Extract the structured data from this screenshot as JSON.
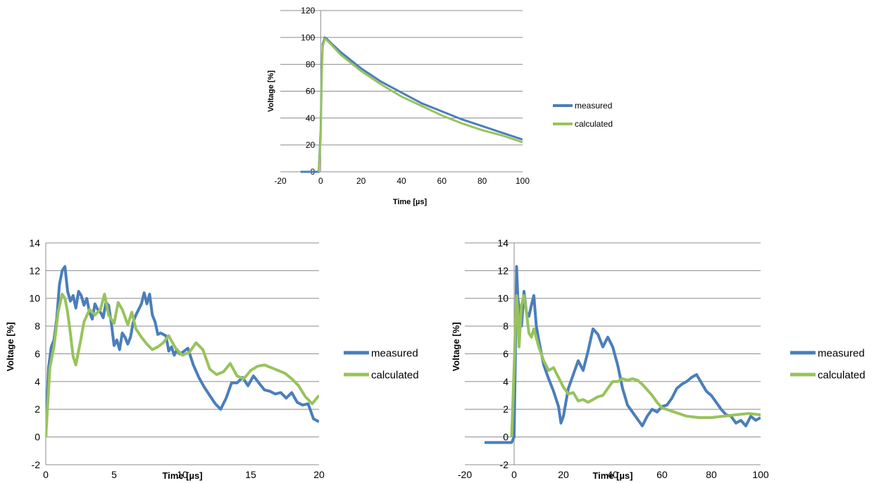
{
  "chart_data": [
    {
      "type": "line",
      "xlabel": "Time [µs]",
      "ylabel": "Voltage [%]",
      "xlim": [
        -20,
        100
      ],
      "ylim": [
        0,
        120
      ],
      "xticks": [
        -20,
        0,
        20,
        40,
        60,
        80,
        100
      ],
      "yticks": [
        0,
        20,
        40,
        60,
        80,
        100,
        120
      ],
      "grid": true,
      "legend_position": "right",
      "series": [
        {
          "name": "measured",
          "color": "#4a7ebb",
          "x": [
            -10,
            -1,
            0,
            0.5,
            1,
            2,
            3,
            5,
            10,
            20,
            30,
            40,
            50,
            60,
            70,
            80,
            90,
            100
          ],
          "y": [
            0,
            0,
            30,
            75,
            95,
            100,
            99,
            96,
            89,
            77,
            67,
            59,
            51,
            45,
            39,
            34,
            29,
            24
          ]
        },
        {
          "name": "calculated",
          "color": "#98c35b",
          "x": [
            -1,
            0,
            0.5,
            1,
            2,
            3,
            5,
            10,
            20,
            30,
            40,
            50,
            60,
            70,
            80,
            90,
            100
          ],
          "y": [
            0,
            25,
            70,
            93,
            99,
            98,
            95,
            87,
            75,
            65,
            56,
            49,
            42,
            36,
            31,
            27,
            22
          ]
        }
      ]
    },
    {
      "type": "line",
      "xlabel": "Time [µs]",
      "ylabel": "Voltage [%]",
      "xlim": [
        0,
        20
      ],
      "ylim": [
        -2,
        14
      ],
      "xticks": [
        0,
        5,
        10,
        15,
        20
      ],
      "yticks": [
        -2,
        0,
        2,
        4,
        6,
        8,
        10,
        12,
        14
      ],
      "grid": true,
      "legend_position": "right",
      "series": [
        {
          "name": "measured",
          "color": "#4a7ebb",
          "x": [
            0,
            0.2,
            0.4,
            0.6,
            0.8,
            1.0,
            1.2,
            1.4,
            1.6,
            1.8,
            2.0,
            2.2,
            2.4,
            2.6,
            2.8,
            3.0,
            3.2,
            3.4,
            3.6,
            3.8,
            4.0,
            4.2,
            4.4,
            4.6,
            4.8,
            5.0,
            5.2,
            5.4,
            5.6,
            5.8,
            6.0,
            6.2,
            6.4,
            6.6,
            6.8,
            7.0,
            7.2,
            7.4,
            7.6,
            7.8,
            8.0,
            8.2,
            8.4,
            8.6,
            8.8,
            9.0,
            9.2,
            9.4,
            9.6,
            9.8,
            10.0,
            10.4,
            10.8,
            11.2,
            11.6,
            12.0,
            12.4,
            12.8,
            13.2,
            13.6,
            14.0,
            14.4,
            14.8,
            15.2,
            15.6,
            16.0,
            16.4,
            16.8,
            17.2,
            17.6,
            18.0,
            18.4,
            18.8,
            19.2,
            19.6,
            20.0
          ],
          "y": [
            0,
            5,
            6.5,
            7,
            8.5,
            11,
            12,
            12.3,
            10.5,
            9.8,
            10.2,
            9.3,
            10.5,
            10.2,
            9.5,
            10.0,
            9.0,
            8.5,
            9.6,
            9.2,
            9.0,
            8.6,
            9.7,
            9.5,
            8.2,
            6.6,
            7.0,
            6.3,
            7.5,
            7.2,
            6.7,
            7.2,
            8.3,
            8.8,
            9.2,
            9.6,
            10.4,
            9.6,
            10.3,
            8.8,
            8.3,
            7.4,
            7.5,
            7.4,
            7.3,
            6.2,
            6.5,
            5.9,
            6.3,
            6.0,
            6.1,
            6.4,
            5.2,
            4.3,
            3.6,
            3.0,
            2.4,
            2.0,
            2.8,
            3.9,
            3.9,
            4.3,
            3.7,
            4.4,
            3.9,
            3.4,
            3.3,
            3.1,
            3.2,
            2.8,
            3.2,
            2.5,
            2.3,
            2.4,
            1.3,
            1.1
          ]
        },
        {
          "name": "calculated",
          "color": "#98c35b",
          "x": [
            0,
            0.3,
            0.6,
            0.9,
            1.2,
            1.4,
            1.6,
            1.8,
            2.0,
            2.2,
            2.5,
            2.8,
            3.2,
            3.6,
            4.0,
            4.3,
            4.6,
            5.0,
            5.3,
            5.6,
            6.0,
            6.3,
            6.6,
            7.0,
            7.4,
            7.8,
            8.2,
            8.6,
            9.0,
            9.5,
            10.0,
            10.5,
            11.0,
            11.5,
            12.0,
            12.5,
            13.0,
            13.5,
            14.0,
            14.5,
            15.0,
            15.5,
            16.0,
            16.5,
            17.0,
            17.5,
            18.0,
            18.5,
            19.0,
            19.5,
            20.0
          ],
          "y": [
            0,
            5,
            6.5,
            9,
            10.3,
            10,
            9,
            7.5,
            5.8,
            5.2,
            6.7,
            8.3,
            9.2,
            8.8,
            9.2,
            10.3,
            8.8,
            8.2,
            9.7,
            9.2,
            8.1,
            9.0,
            7.8,
            7.2,
            6.7,
            6.3,
            6.5,
            6.8,
            7.3,
            6.4,
            5.9,
            6.1,
            6.8,
            6.3,
            4.9,
            4.5,
            4.7,
            5.3,
            4.4,
            4.2,
            4.8,
            5.1,
            5.2,
            5.0,
            4.8,
            4.6,
            4.2,
            3.7,
            2.9,
            2.4,
            3.0
          ]
        }
      ]
    },
    {
      "type": "line",
      "xlabel": "Time [µs]",
      "ylabel": "Voltage [%]",
      "xlim": [
        -20,
        100
      ],
      "ylim": [
        -2,
        14
      ],
      "xticks": [
        -20,
        0,
        20,
        40,
        60,
        80,
        100
      ],
      "yticks": [
        -2,
        0,
        2,
        4,
        6,
        8,
        10,
        12,
        14
      ],
      "grid": true,
      "legend_position": "right",
      "series": [
        {
          "name": "measured",
          "color": "#4a7ebb",
          "x": [
            -12,
            -1,
            0,
            0.5,
            1,
            1.5,
            2,
            3,
            4,
            5,
            6,
            7,
            8,
            9,
            10,
            12,
            14,
            16,
            18,
            19,
            20,
            21,
            22,
            24,
            26,
            28,
            30,
            32,
            34,
            36,
            38,
            40,
            42,
            44,
            46,
            48,
            50,
            52,
            54,
            56,
            58,
            60,
            62,
            64,
            66,
            68,
            70,
            72,
            74,
            76,
            78,
            80,
            82,
            84,
            86,
            88,
            90,
            92,
            94,
            96,
            98,
            100
          ],
          "y": [
            -0.4,
            -0.4,
            0,
            6,
            12.3,
            10,
            9.3,
            8,
            10.5,
            9,
            8.7,
            9.5,
            10.2,
            8,
            7,
            5.2,
            4.2,
            3.3,
            2.2,
            1,
            1.5,
            2.5,
            3.5,
            4.5,
            5.5,
            4.8,
            6.2,
            7.8,
            7.4,
            6.5,
            7.2,
            6.5,
            5.2,
            3.5,
            2.3,
            1.8,
            1.3,
            0.8,
            1.5,
            2.0,
            1.8,
            2.2,
            2.3,
            2.8,
            3.5,
            3.8,
            4.0,
            4.3,
            4.5,
            3.9,
            3.3,
            3.0,
            2.5,
            2.0,
            1.6,
            1.5,
            1.0,
            1.2,
            0.8,
            1.5,
            1.2,
            1.4
          ]
        },
        {
          "name": "calculated",
          "color": "#98c35b",
          "x": [
            -1,
            0,
            0.5,
            1,
            1.5,
            2,
            3,
            4,
            5,
            6,
            7,
            8,
            10,
            12,
            14,
            16,
            18,
            20,
            22,
            24,
            26,
            28,
            30,
            32,
            34,
            36,
            38,
            40,
            42,
            44,
            46,
            48,
            50,
            52,
            54,
            56,
            58,
            60,
            65,
            70,
            75,
            80,
            85,
            90,
            95,
            100
          ],
          "y": [
            0,
            5,
            8,
            10.2,
            9,
            6.5,
            9.5,
            10.2,
            9,
            7.5,
            7.2,
            7.8,
            6.5,
            5.5,
            4.8,
            5.0,
            4.3,
            3.6,
            3.1,
            3.2,
            2.6,
            2.7,
            2.5,
            2.7,
            2.9,
            3.0,
            3.5,
            4.0,
            4.0,
            4.2,
            4.1,
            4.2,
            4.1,
            3.8,
            3.4,
            3.0,
            2.5,
            2.1,
            1.8,
            1.5,
            1.4,
            1.4,
            1.5,
            1.6,
            1.7,
            1.6
          ]
        }
      ]
    }
  ]
}
